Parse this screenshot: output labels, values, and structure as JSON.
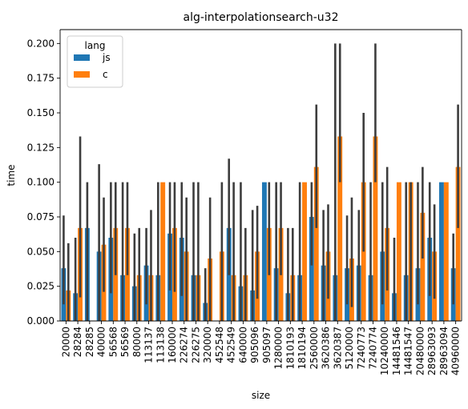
{
  "chart_data": {
    "type": "bar",
    "title": "alg-interpolationsearch-u32",
    "xlabel": "size",
    "ylabel": "time",
    "ylim": [
      0,
      0.21
    ],
    "yticks": [
      0.0,
      0.025,
      0.05,
      0.075,
      0.1,
      0.125,
      0.15,
      0.175,
      0.2
    ],
    "ytick_labels": [
      "0.000",
      "0.025",
      "0.050",
      "0.075",
      "0.100",
      "0.125",
      "0.150",
      "0.175",
      "0.200"
    ],
    "categories": [
      "20000",
      "28284",
      "28285",
      "40000",
      "56568",
      "56569",
      "80000",
      "113137",
      "113138",
      "160000",
      "226274",
      "226275",
      "320000",
      "452548",
      "452549",
      "640000",
      "905096",
      "905097",
      "1280000",
      "1810193",
      "1810194",
      "2560000",
      "3620386",
      "3620387",
      "5120000",
      "7240773",
      "7240774",
      "10240000",
      "14481546",
      "14481547",
      "20480000",
      "28963093",
      "28963094",
      "40960000"
    ],
    "legend": {
      "title": "lang",
      "placement": "upper-left"
    },
    "series": [
      {
        "name": "js",
        "color": "#1f77b4",
        "values": [
          0.038,
          0.02,
          0.067,
          0.05,
          0.06,
          0.033,
          0.025,
          0.04,
          0.033,
          0.063,
          0.06,
          0.033,
          0.013,
          0.0,
          0.067,
          0.025,
          0.022,
          0.1,
          0.038,
          0.02,
          0.033,
          0.075,
          0.04,
          0.033,
          0.038,
          0.04,
          0.033,
          0.05,
          0.02,
          0.033,
          0.038,
          0.06,
          0.1,
          0.038
        ],
        "ci_low": [
          0.012,
          0.0,
          0.0,
          0.0,
          0.02,
          0.0,
          0.0,
          0.012,
          0.0,
          0.022,
          0.018,
          0.0,
          0.0,
          0.0,
          0.033,
          0.0,
          0.0,
          0.1,
          0.0,
          0.0,
          0.0,
          0.04,
          0.0,
          0.0,
          0.012,
          0.0,
          0.0,
          0.012,
          0.0,
          0.0,
          0.012,
          0.018,
          0.1,
          0.012
        ],
        "ci_high": [
          0.076,
          0.06,
          0.1,
          0.113,
          0.1,
          0.1,
          0.063,
          0.067,
          0.1,
          0.1,
          0.1,
          0.1,
          0.038,
          0.0,
          0.117,
          0.1,
          0.08,
          0.1,
          0.1,
          0.067,
          0.1,
          0.1,
          0.08,
          0.2,
          0.076,
          0.08,
          0.1,
          0.1,
          0.06,
          0.1,
          0.1,
          0.1,
          0.1,
          0.063
        ]
      },
      {
        "name": "c",
        "color": "#ff7f0e",
        "values": [
          0.022,
          0.067,
          0.0,
          0.055,
          0.067,
          0.067,
          0.033,
          0.033,
          0.1,
          0.067,
          0.05,
          0.033,
          0.045,
          0.05,
          0.033,
          0.033,
          0.05,
          0.067,
          0.067,
          0.033,
          0.1,
          0.111,
          0.05,
          0.133,
          0.045,
          0.1,
          0.133,
          0.067,
          0.1,
          0.1,
          0.078,
          0.05,
          0.1,
          0.111
        ],
        "ci_low": [
          0.0,
          0.017,
          0.0,
          0.021,
          0.033,
          0.033,
          0.0,
          0.0,
          0.1,
          0.021,
          0.0,
          0.0,
          0.0,
          0.0,
          0.0,
          0.0,
          0.016,
          0.033,
          0.033,
          0.0,
          0.1,
          0.067,
          0.016,
          0.1,
          0.01,
          0.05,
          0.1,
          0.022,
          0.1,
          0.0,
          0.045,
          0.016,
          0.1,
          0.067
        ],
        "ci_high": [
          0.056,
          0.133,
          0.0,
          0.089,
          0.1,
          0.1,
          0.067,
          0.08,
          0.1,
          0.1,
          0.089,
          0.1,
          0.089,
          0.1,
          0.1,
          0.067,
          0.083,
          0.1,
          0.1,
          0.067,
          0.1,
          0.156,
          0.084,
          0.2,
          0.089,
          0.15,
          0.2,
          0.111,
          0.1,
          0.1,
          0.111,
          0.084,
          0.1,
          0.156
        ]
      }
    ]
  }
}
